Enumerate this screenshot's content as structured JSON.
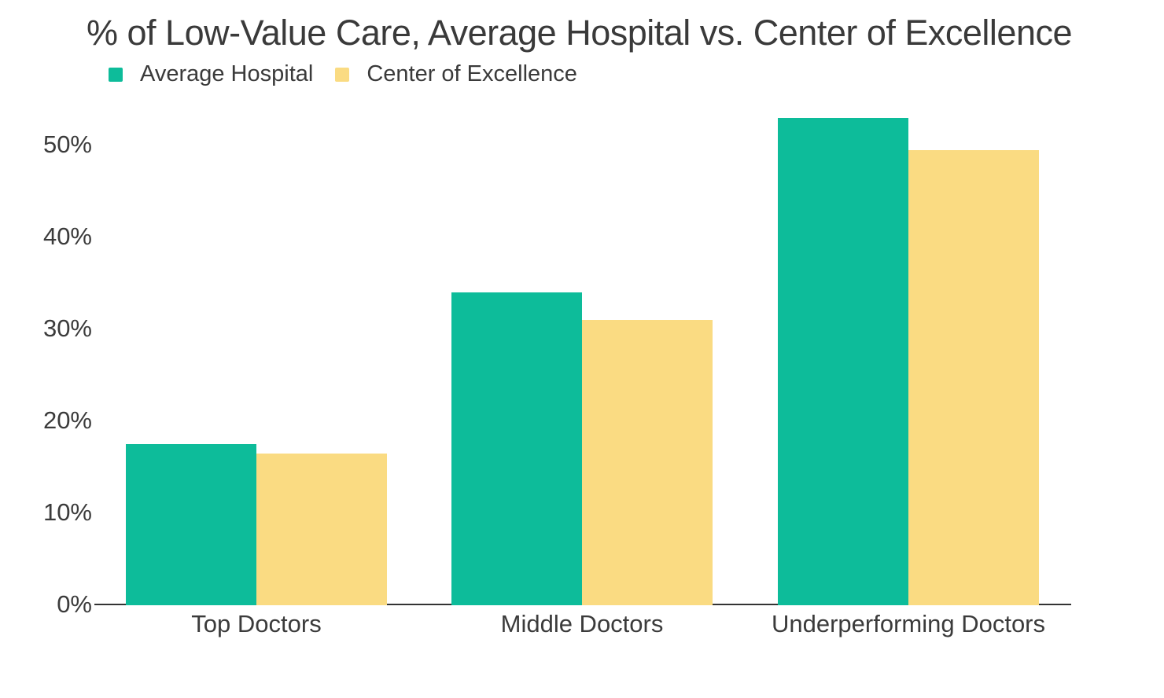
{
  "title": "% of Low-Value Care, Average Hospital vs. Center of Excellence",
  "legend": {
    "items": [
      {
        "label": "Average Hospital",
        "color": "#0dbc9a"
      },
      {
        "label": "Center of Excellence",
        "color": "#fadb82"
      }
    ]
  },
  "chart_data": {
    "type": "bar",
    "title": "% of Low-Value Care, Average Hospital vs. Center of Excellence",
    "categories": [
      "Top Doctors",
      "Middle Doctors",
      "Underperforming Doctors"
    ],
    "series": [
      {
        "name": "Average Hospital",
        "color": "#0dbc9a",
        "values": [
          17.5,
          34,
          53
        ]
      },
      {
        "name": "Center of Excellence",
        "color": "#fadb82",
        "values": [
          16.5,
          31,
          49.5
        ]
      }
    ],
    "xlabel": "",
    "ylabel": "",
    "ylim": [
      0,
      55
    ],
    "yticks": [
      {
        "value": 0,
        "label": "0%"
      },
      {
        "value": 10,
        "label": "10%"
      },
      {
        "value": 20,
        "label": "20%"
      },
      {
        "value": 30,
        "label": "30%"
      },
      {
        "value": 40,
        "label": "40%"
      },
      {
        "value": 50,
        "label": "50%"
      }
    ],
    "grid": false,
    "legend_position": "top-left",
    "bar_orientation": "vertical"
  },
  "colors": {
    "text": "#3b3b3b",
    "axis": "#333333",
    "background": "#ffffff"
  }
}
